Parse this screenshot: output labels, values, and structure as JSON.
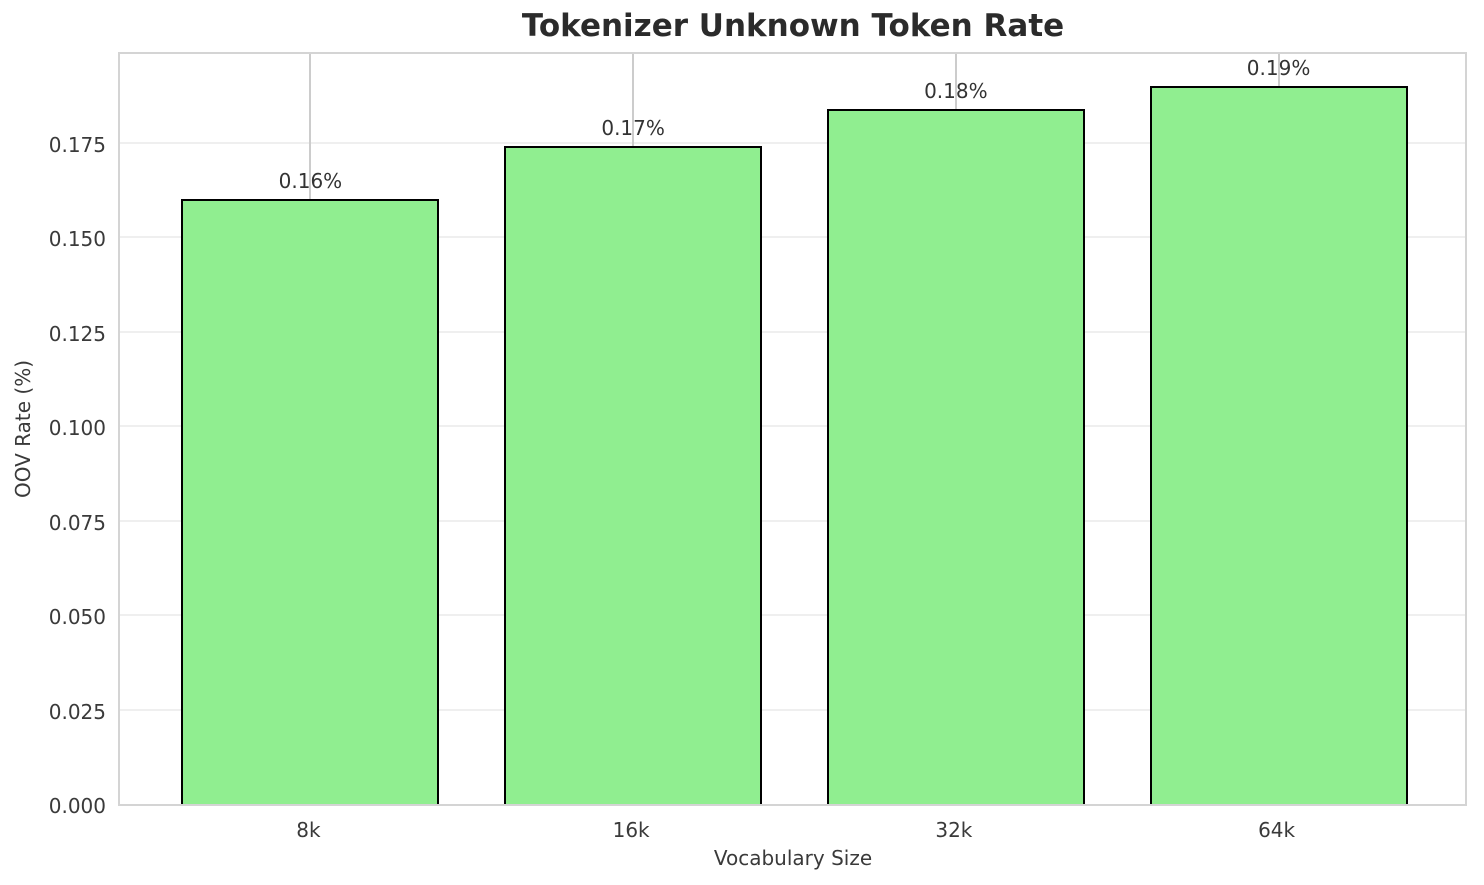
{
  "chart_data": {
    "type": "bar",
    "title": "Tokenizer Unknown Token Rate",
    "xlabel": "Vocabulary Size",
    "ylabel": "OOV Rate (%)",
    "categories": [
      "8k",
      "16k",
      "32k",
      "64k"
    ],
    "values": [
      0.16,
      0.174,
      0.184,
      0.19
    ],
    "bar_labels": [
      "0.16%",
      "0.17%",
      "0.18%",
      "0.19%"
    ],
    "ylim": [
      0,
      0.1995
    ],
    "xlim": [
      -0.59,
      3.59
    ],
    "bar_width": 0.8,
    "yticks": [
      0,
      0.025,
      0.05,
      0.075,
      0.1,
      0.125,
      0.15,
      0.175
    ],
    "ytick_labels": [
      "0.000",
      "0.025",
      "0.050",
      "0.075",
      "0.100",
      "0.125",
      "0.150",
      "0.175"
    ],
    "grid": true,
    "legend_position": "none",
    "colors": {
      "bar_fill": "#90EE90",
      "bar_edge": "#000000",
      "grid_horizontal": "#efefef",
      "grid_vertical": "#cccccc",
      "spine": "#d4d4d4",
      "tick_text": "#3a3a3a",
      "title_text": "#2b2b2b",
      "background": "#ffffff"
    }
  }
}
